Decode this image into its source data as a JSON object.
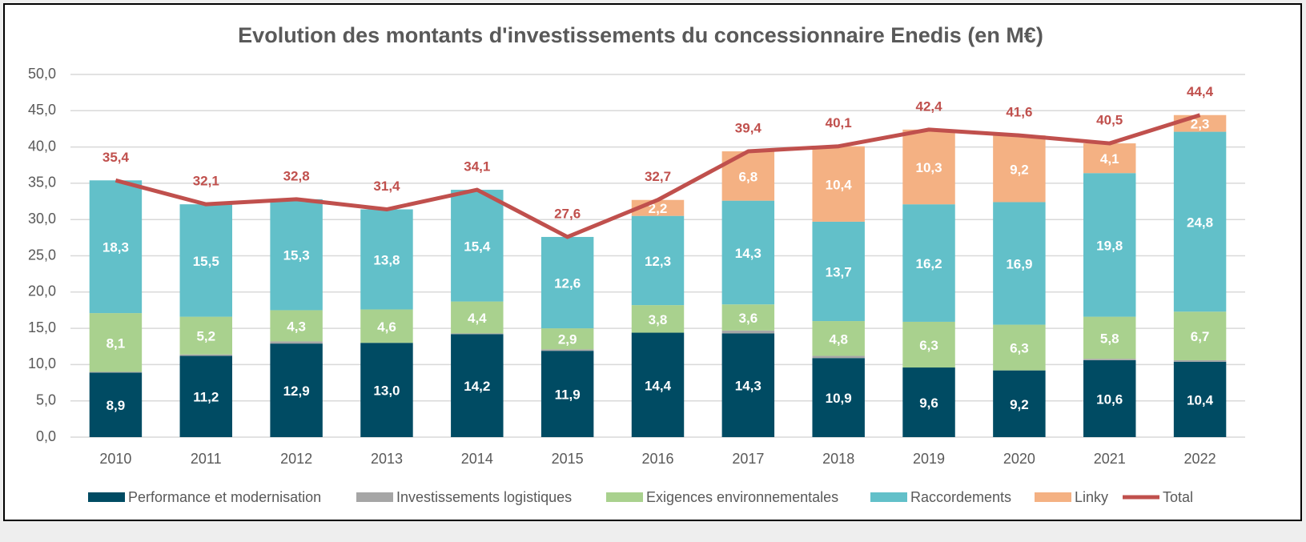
{
  "chart_data": {
    "type": "stacked_bar_line",
    "title": "Evolution des montants d'investissements du concessionnaire Enedis (en M€)",
    "categories": [
      "2010",
      "2011",
      "2012",
      "2013",
      "2014",
      "2015",
      "2016",
      "2017",
      "2018",
      "2019",
      "2020",
      "2021",
      "2022"
    ],
    "ylim": [
      0,
      50
    ],
    "yticks": [
      {
        "value": 0,
        "label": "0,0"
      },
      {
        "value": 5,
        "label": "5,0"
      },
      {
        "value": 10,
        "label": "10,0"
      },
      {
        "value": 15,
        "label": "15,0"
      },
      {
        "value": 20,
        "label": "20,0"
      },
      {
        "value": 25,
        "label": "25,0"
      },
      {
        "value": 30,
        "label": "30,0"
      },
      {
        "value": 35,
        "label": "35,0"
      },
      {
        "value": 40,
        "label": "40,0"
      },
      {
        "value": 45,
        "label": "45,0"
      },
      {
        "value": 50,
        "label": "50,0"
      }
    ],
    "grid": true,
    "legend": "bottom",
    "series": [
      {
        "name": "Performance et modernisation",
        "color": "#004b63",
        "kind": "bar",
        "values": [
          8.9,
          11.2,
          12.9,
          13.0,
          14.2,
          11.9,
          14.4,
          14.3,
          10.9,
          9.6,
          9.2,
          10.6,
          10.4
        ],
        "value_labels": [
          "8,9",
          "11,2",
          "12,9",
          "13,0",
          "14,2",
          "11,9",
          "14,4",
          "14,3",
          "10,9",
          "9,6",
          "9,2",
          "10,6",
          "10,4"
        ]
      },
      {
        "name": "Investissements logistiques",
        "color": "#a6a6a6",
        "kind": "bar",
        "values": [
          0.1,
          0.2,
          0.3,
          0,
          0.1,
          0.2,
          0,
          0.4,
          0.3,
          0,
          0,
          0.2,
          0.2
        ]
      },
      {
        "name": "Exigences environnementales",
        "color": "#a9d18e",
        "kind": "bar",
        "values": [
          8.1,
          5.2,
          4.3,
          4.6,
          4.4,
          2.9,
          3.8,
          3.6,
          4.8,
          6.3,
          6.3,
          5.8,
          6.7
        ],
        "value_labels": [
          "8,1",
          "5,2",
          "4,3",
          "4,6",
          "4,4",
          "2,9",
          "3,8",
          "3,6",
          "4,8",
          "6,3",
          "6,3",
          "5,8",
          "6,7"
        ]
      },
      {
        "name": "Raccordements",
        "color": "#62c0c9",
        "kind": "bar",
        "values": [
          18.3,
          15.5,
          15.3,
          13.8,
          15.4,
          12.6,
          12.3,
          14.3,
          13.7,
          16.2,
          16.9,
          19.8,
          24.8
        ],
        "value_labels": [
          "18,3",
          "15,5",
          "15,3",
          "13,8",
          "15,4",
          "12,6",
          "12,3",
          "14,3",
          "13,7",
          "16,2",
          "16,9",
          "19,8",
          "24,8"
        ]
      },
      {
        "name": "Linky",
        "color": "#f4b183",
        "kind": "bar",
        "values": [
          null,
          null,
          null,
          null,
          null,
          null,
          2.2,
          6.8,
          10.4,
          10.3,
          9.2,
          4.1,
          2.3
        ],
        "value_labels": [
          null,
          null,
          null,
          null,
          null,
          null,
          "2,2",
          "6,8",
          "10,4",
          "10,3",
          "9,2",
          "4,1",
          "2,3"
        ]
      },
      {
        "name": "Total",
        "color": "#c0504d",
        "kind": "line",
        "values": [
          35.4,
          32.1,
          32.8,
          31.4,
          34.1,
          27.6,
          32.7,
          39.4,
          40.1,
          42.4,
          41.6,
          40.5,
          44.4
        ],
        "value_labels": [
          "35,4",
          "32,1",
          "32,8",
          "31,4",
          "34,1",
          "27,6",
          "32,7",
          "39,4",
          "40,1",
          "42,4",
          "41,6",
          "40,5",
          "44,4"
        ]
      }
    ]
  }
}
